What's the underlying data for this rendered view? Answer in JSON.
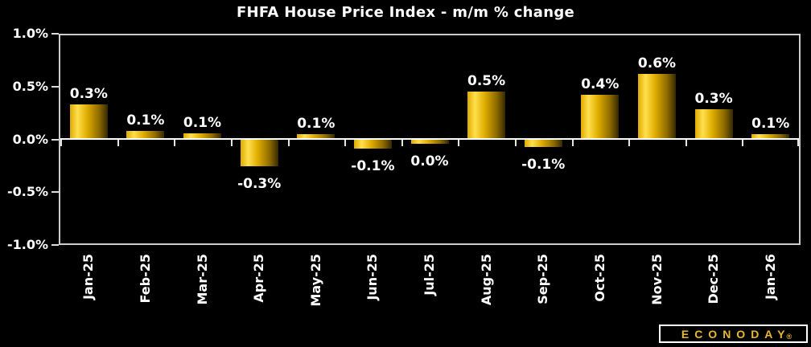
{
  "title": "FHFA House Price Index - m/m % change",
  "chart_data": {
    "type": "bar",
    "title": "FHFA House Price Index - m/m % change",
    "categories": [
      "Jan-25",
      "Feb-25",
      "Mar-25",
      "Apr-25",
      "May-25",
      "Jun-25",
      "Jul-25",
      "Aug-25",
      "Sep-25",
      "Oct-25",
      "Nov-25",
      "Dec-25",
      "Jan-26"
    ],
    "values": [
      0.3,
      0.1,
      0.1,
      -0.3,
      0.1,
      -0.1,
      0.0,
      0.5,
      -0.1,
      0.4,
      0.6,
      0.3,
      0.1
    ],
    "bar_labels": [
      "0.3%",
      "0.1%",
      "0.1%",
      "-0.3%",
      "0.1%",
      "-0.1%",
      "0.0%",
      "0.5%",
      "-0.1%",
      "0.4%",
      "0.6%",
      "0.3%",
      "0.1%"
    ],
    "values_precise": [
      0.34,
      0.08,
      0.06,
      -0.26,
      0.05,
      -0.09,
      -0.04,
      0.46,
      -0.07,
      0.43,
      0.63,
      0.29,
      0.05
    ],
    "ylim": [
      -1.0,
      1.0
    ],
    "yticks": [
      1.0,
      0.5,
      0.0,
      -0.5,
      -1.0
    ],
    "ytick_labels": [
      "1.0%",
      "0.5%",
      "0.0%",
      "-0.5%",
      "-1.0%"
    ],
    "xlabel": "",
    "ylabel": "",
    "grid": false,
    "legend": "none",
    "bar_gradient": [
      "#dfa900",
      "#ffe04d",
      "#e0ae00",
      "#8a6800",
      "#342800"
    ]
  },
  "colors": {
    "background": "#000000",
    "text": "#ffffff",
    "plot_border": "#cdcdcd",
    "zero_line": "#ffffff",
    "bar_gold": "#f2c300",
    "logo_gold": "#e9b82e"
  },
  "logo": {
    "text": "ECONODAY",
    "registered_mark": "®"
  }
}
